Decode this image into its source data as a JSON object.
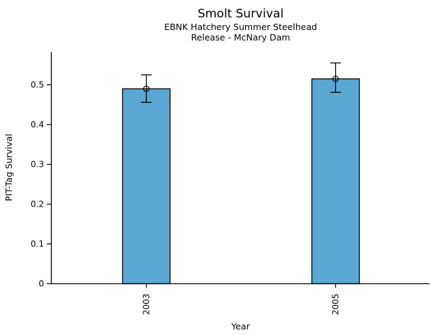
{
  "chart_data": {
    "type": "bar",
    "title": "Smolt Survival",
    "subtitle_lines": [
      "EBNK Hatchery Summer Steelhead",
      "Release - McNary Dam"
    ],
    "xlabel": "Year",
    "ylabel": "PIT-Tag Survival",
    "categories": [
      "2003",
      "2005"
    ],
    "values": [
      0.49,
      0.515
    ],
    "error_low": [
      0.456,
      0.481
    ],
    "error_high": [
      0.525,
      0.555
    ],
    "yticks": [
      0,
      0.1,
      0.2,
      0.3,
      0.4,
      0.5
    ],
    "ylim": [
      0,
      0.582
    ],
    "bar_color": "#5BA7D3",
    "bar_edge_color": "#000000",
    "error_bar_color": "#000000",
    "marker": "open-circle",
    "grid": false,
    "legend": null,
    "background": "#ffffff"
  }
}
